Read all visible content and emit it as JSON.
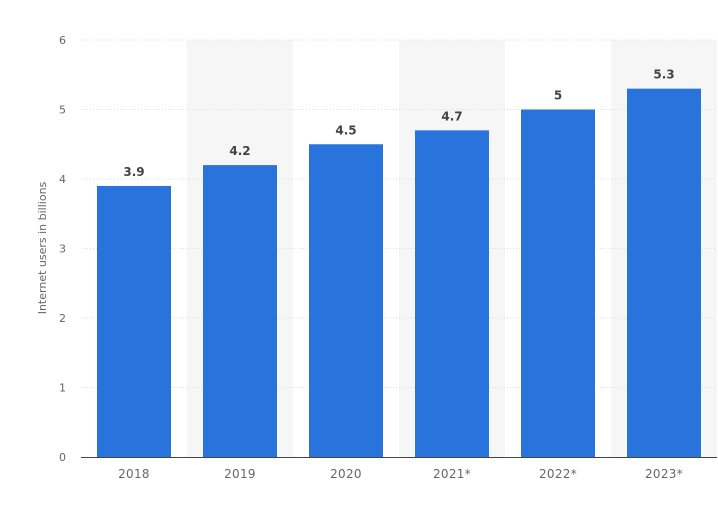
{
  "chart_data": {
    "type": "bar",
    "categories": [
      "2018",
      "2019",
      "2020",
      "2021*",
      "2022*",
      "2023*"
    ],
    "values": [
      3.9,
      4.2,
      4.5,
      4.7,
      5,
      5.3
    ],
    "value_labels": [
      "3.9",
      "4.2",
      "4.5",
      "4.7",
      "5",
      "5.3"
    ],
    "title": "",
    "xlabel": "",
    "ylabel": "Internet users in billions",
    "ylim": [
      0,
      6
    ],
    "yticks": [
      "0",
      "1",
      "2",
      "3",
      "4",
      "5",
      "6"
    ],
    "grid": true,
    "bar_color": "#2874dc",
    "alternate_band_color": "#f6f6f6",
    "grid_color": "#dddddd"
  }
}
